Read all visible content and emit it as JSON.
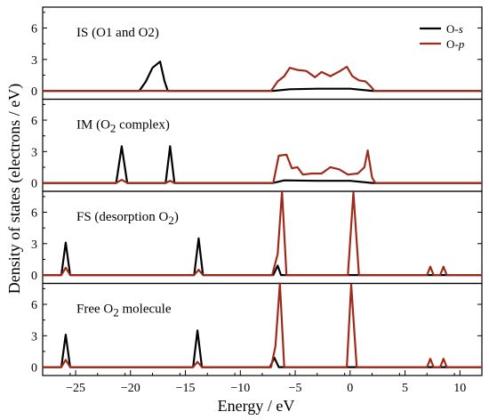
{
  "chart_data": {
    "type": "line",
    "xlabel": "Energy / eV",
    "ylabel": "Density of states (electrons / eV)",
    "xlim": [
      -28,
      12
    ],
    "ylim": [
      -0.8,
      8
    ],
    "x_ticks": [
      -25,
      -20,
      -15,
      -10,
      -5,
      0,
      5,
      10
    ],
    "y_ticks": [
      0,
      3,
      6
    ],
    "legend": {
      "position": "top-right",
      "entries": [
        {
          "label": "O-",
          "label_italic": "s",
          "color": "#000000"
        },
        {
          "label": "O-",
          "label_italic": "p",
          "color": "#9e2a1a"
        }
      ]
    },
    "panels": [
      {
        "label": "IS (O1 and O2)",
        "series": [
          {
            "name": "O-s",
            "color": "#000000",
            "points": [
              [
                -28,
                0
              ],
              [
                -19.2,
                0
              ],
              [
                -18.6,
                0.9
              ],
              [
                -18.0,
                2.2
              ],
              [
                -17.3,
                2.8
              ],
              [
                -16.9,
                0.9
              ],
              [
                -16.6,
                0
              ],
              [
                -7.0,
                0
              ],
              [
                -5.5,
                0.15
              ],
              [
                -3,
                0.2
              ],
              [
                0,
                0.2
              ],
              [
                2,
                0
              ],
              [
                12,
                0
              ]
            ]
          },
          {
            "name": "O-p",
            "color": "#9e2a1a",
            "points": [
              [
                -28,
                0
              ],
              [
                -7.2,
                0
              ],
              [
                -6.6,
                0.9
              ],
              [
                -6.0,
                1.4
              ],
              [
                -5.5,
                2.2
              ],
              [
                -4.8,
                2.0
              ],
              [
                -4.0,
                1.9
              ],
              [
                -3.2,
                1.3
              ],
              [
                -2.6,
                1.8
              ],
              [
                -1.8,
                1.4
              ],
              [
                -0.9,
                1.9
              ],
              [
                -0.3,
                2.3
              ],
              [
                0.2,
                1.4
              ],
              [
                0.8,
                1.0
              ],
              [
                1.4,
                0.9
              ],
              [
                1.9,
                0.4
              ],
              [
                2.2,
                0
              ],
              [
                12,
                0
              ]
            ]
          }
        ]
      },
      {
        "label": "IM (O",
        "label_sub": "2",
        "label_tail": " complex)",
        "series": [
          {
            "name": "O-s",
            "color": "#000000",
            "points": [
              [
                -28,
                0
              ],
              [
                -21.3,
                0
              ],
              [
                -20.8,
                3.5
              ],
              [
                -20.3,
                0
              ],
              [
                -16.8,
                0
              ],
              [
                -16.4,
                3.5
              ],
              [
                -16.0,
                0
              ],
              [
                -7.0,
                0
              ],
              [
                -6,
                0.25
              ],
              [
                -3,
                0.2
              ],
              [
                0,
                0.2
              ],
              [
                2,
                0
              ],
              [
                12,
                0
              ]
            ]
          },
          {
            "name": "O-p",
            "color": "#9e2a1a",
            "points": [
              [
                -28,
                0
              ],
              [
                -21.3,
                0
              ],
              [
                -20.8,
                0.3
              ],
              [
                -20.3,
                0
              ],
              [
                -16.8,
                0
              ],
              [
                -16.4,
                0.2
              ],
              [
                -16.0,
                0
              ],
              [
                -7.0,
                0
              ],
              [
                -6.5,
                2.6
              ],
              [
                -5.8,
                2.7
              ],
              [
                -5.3,
                1.4
              ],
              [
                -4.8,
                1.5
              ],
              [
                -4.3,
                0.8
              ],
              [
                -3.5,
                0.9
              ],
              [
                -2.6,
                0.9
              ],
              [
                -1.8,
                1.5
              ],
              [
                -1.0,
                1.3
              ],
              [
                -0.2,
                0.8
              ],
              [
                0.7,
                0.9
              ],
              [
                1.3,
                1.5
              ],
              [
                1.6,
                3.1
              ],
              [
                2.0,
                0.5
              ],
              [
                2.3,
                0
              ],
              [
                12,
                0
              ]
            ]
          }
        ]
      },
      {
        "label": "FS (desorption O",
        "label_sub": "2",
        "label_tail": ")",
        "series": [
          {
            "name": "O-s",
            "color": "#000000",
            "points": [
              [
                -28,
                0
              ],
              [
                -26.3,
                0
              ],
              [
                -25.9,
                3.1
              ],
              [
                -25.5,
                0
              ],
              [
                -14.2,
                0
              ],
              [
                -13.8,
                3.5
              ],
              [
                -13.4,
                0
              ],
              [
                -7.0,
                0
              ],
              [
                -6.6,
                0.9
              ],
              [
                -6.3,
                0
              ],
              [
                12,
                0
              ]
            ]
          },
          {
            "name": "O-p",
            "color": "#9e2a1a",
            "points": [
              [
                -28,
                0
              ],
              [
                -26.3,
                0
              ],
              [
                -25.9,
                0.7
              ],
              [
                -25.5,
                0
              ],
              [
                -14.2,
                0
              ],
              [
                -13.8,
                0.5
              ],
              [
                -13.4,
                0
              ],
              [
                -7.1,
                0
              ],
              [
                -6.6,
                2.0
              ],
              [
                -6.2,
                8.0
              ],
              [
                -5.8,
                0
              ],
              [
                -0.2,
                0
              ],
              [
                0.3,
                7.9
              ],
              [
                0.8,
                0
              ],
              [
                7.0,
                0
              ],
              [
                7.3,
                0.8
              ],
              [
                7.6,
                0
              ],
              [
                8.2,
                0
              ],
              [
                8.5,
                0.8
              ],
              [
                8.8,
                0
              ],
              [
                12,
                0
              ]
            ]
          }
        ]
      },
      {
        "label": "Free O",
        "label_sub": "2",
        "label_tail": " molecule",
        "series": [
          {
            "name": "O-s",
            "color": "#000000",
            "points": [
              [
                -28,
                0
              ],
              [
                -26.3,
                0
              ],
              [
                -25.9,
                3.1
              ],
              [
                -25.5,
                0
              ],
              [
                -14.3,
                0
              ],
              [
                -13.9,
                3.5
              ],
              [
                -13.5,
                0
              ],
              [
                -7.3,
                0
              ],
              [
                -6.9,
                0.9
              ],
              [
                -6.5,
                0
              ],
              [
                12,
                0
              ]
            ]
          },
          {
            "name": "O-p",
            "color": "#9e2a1a",
            "points": [
              [
                -28,
                0
              ],
              [
                -26.3,
                0
              ],
              [
                -25.9,
                0.7
              ],
              [
                -25.5,
                0
              ],
              [
                -14.3,
                0
              ],
              [
                -13.9,
                0.5
              ],
              [
                -13.5,
                0
              ],
              [
                -7.2,
                0
              ],
              [
                -6.8,
                2.0
              ],
              [
                -6.4,
                8.0
              ],
              [
                -6.0,
                0
              ],
              [
                -0.3,
                0
              ],
              [
                0.1,
                7.9
              ],
              [
                0.6,
                0
              ],
              [
                7.0,
                0
              ],
              [
                7.3,
                0.8
              ],
              [
                7.6,
                0
              ],
              [
                8.2,
                0
              ],
              [
                8.5,
                0.8
              ],
              [
                8.8,
                0
              ],
              [
                12,
                0
              ]
            ]
          }
        ]
      }
    ]
  }
}
